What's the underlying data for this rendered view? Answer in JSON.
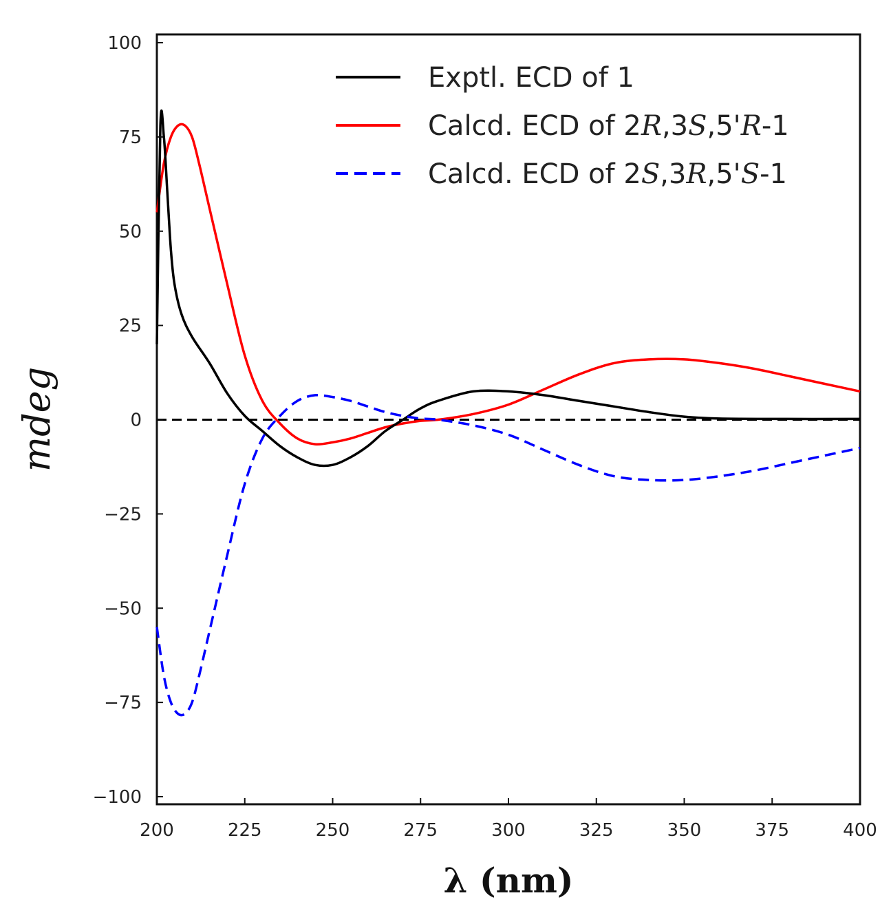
{
  "chart_data": {
    "type": "line",
    "title": "",
    "xlabel": "λ (nm)",
    "ylabel": "mdeg",
    "xlim": [
      200,
      400
    ],
    "ylim": [
      -100,
      100
    ],
    "xticks": [
      200,
      225,
      250,
      275,
      300,
      325,
      350,
      375,
      400
    ],
    "yticks": [
      100,
      75,
      50,
      25,
      0,
      -25,
      -50,
      -75,
      -100
    ],
    "ytick_labels": [
      "100",
      "75",
      "50",
      "25",
      "0",
      "−25",
      "−50",
      "−75",
      "−100"
    ],
    "legend_position": "top-right",
    "baseline": {
      "y": 0,
      "style": "dashed",
      "color": "#000000"
    },
    "series": [
      {
        "name": "Exptl. ECD of 1",
        "legend_parts": [
          {
            "t": "Exptl. ECD of 1",
            "i": false
          }
        ],
        "color": "#000000",
        "dash": false,
        "x": [
          200,
          201,
          202,
          203,
          204,
          205,
          207,
          210,
          215,
          220,
          225,
          230,
          235,
          240,
          245,
          250,
          255,
          260,
          265,
          270,
          275,
          280,
          290,
          300,
          310,
          320,
          330,
          340,
          350,
          360,
          375,
          400
        ],
        "y": [
          20,
          78,
          75,
          60,
          45,
          36,
          28,
          22,
          15,
          7,
          1,
          -3,
          -7,
          -10,
          -12,
          -12,
          -10,
          -7,
          -3,
          0,
          3,
          5,
          7.5,
          7.5,
          6.5,
          5,
          3.5,
          2,
          0.8,
          0.3,
          0.2,
          0.2
        ]
      },
      {
        "name": "Calcd. ECD of 2R,3S,5'R-1",
        "legend_parts": [
          {
            "t": "Calcd. ECD of 2",
            "i": false
          },
          {
            "t": "R",
            "i": true
          },
          {
            "t": ",3",
            "i": false
          },
          {
            "t": "S",
            "i": true
          },
          {
            "t": ",5'",
            "i": false
          },
          {
            "t": "R",
            "i": true
          },
          {
            "t": "-1",
            "i": false
          }
        ],
        "color": "#ff0000",
        "dash": false,
        "x": [
          200,
          202,
          204,
          206,
          208,
          210,
          212,
          215,
          220,
          225,
          230,
          235,
          240,
          245,
          250,
          255,
          260,
          265,
          270,
          275,
          280,
          290,
          300,
          310,
          320,
          330,
          340,
          350,
          360,
          370,
          380,
          390,
          400
        ],
        "y": [
          55,
          68,
          75,
          78,
          78,
          75,
          68,
          56,
          36,
          17,
          5,
          -1,
          -5,
          -6.5,
          -6,
          -5,
          -3.5,
          -2,
          -1,
          -0.3,
          0,
          1.5,
          4,
          8,
          12,
          15,
          16,
          16,
          15,
          13.5,
          11.5,
          9.5,
          7.5
        ]
      },
      {
        "name": "Calcd. ECD of 2S,3R,5'S-1",
        "legend_parts": [
          {
            "t": "Calcd. ECD of 2",
            "i": false
          },
          {
            "t": "S",
            "i": true
          },
          {
            "t": ",3",
            "i": false
          },
          {
            "t": "R",
            "i": true
          },
          {
            "t": ",5'",
            "i": false
          },
          {
            "t": "S",
            "i": true
          },
          {
            "t": "-1",
            "i": false
          }
        ],
        "color": "#0000ff",
        "dash": true,
        "x": [
          200,
          202,
          204,
          206,
          208,
          210,
          212,
          215,
          220,
          225,
          230,
          235,
          240,
          245,
          250,
          255,
          260,
          265,
          270,
          275,
          280,
          290,
          300,
          310,
          320,
          330,
          340,
          350,
          360,
          370,
          380,
          390,
          400
        ],
        "y": [
          -55,
          -68,
          -75,
          -78,
          -78,
          -75,
          -68,
          -56,
          -36,
          -17,
          -5,
          1,
          5,
          6.5,
          6,
          5,
          3.5,
          2,
          1,
          0.3,
          0,
          -1.5,
          -4,
          -8,
          -12,
          -15,
          -16,
          -16,
          -15,
          -13.5,
          -11.5,
          -9.5,
          -7.5
        ]
      }
    ]
  }
}
